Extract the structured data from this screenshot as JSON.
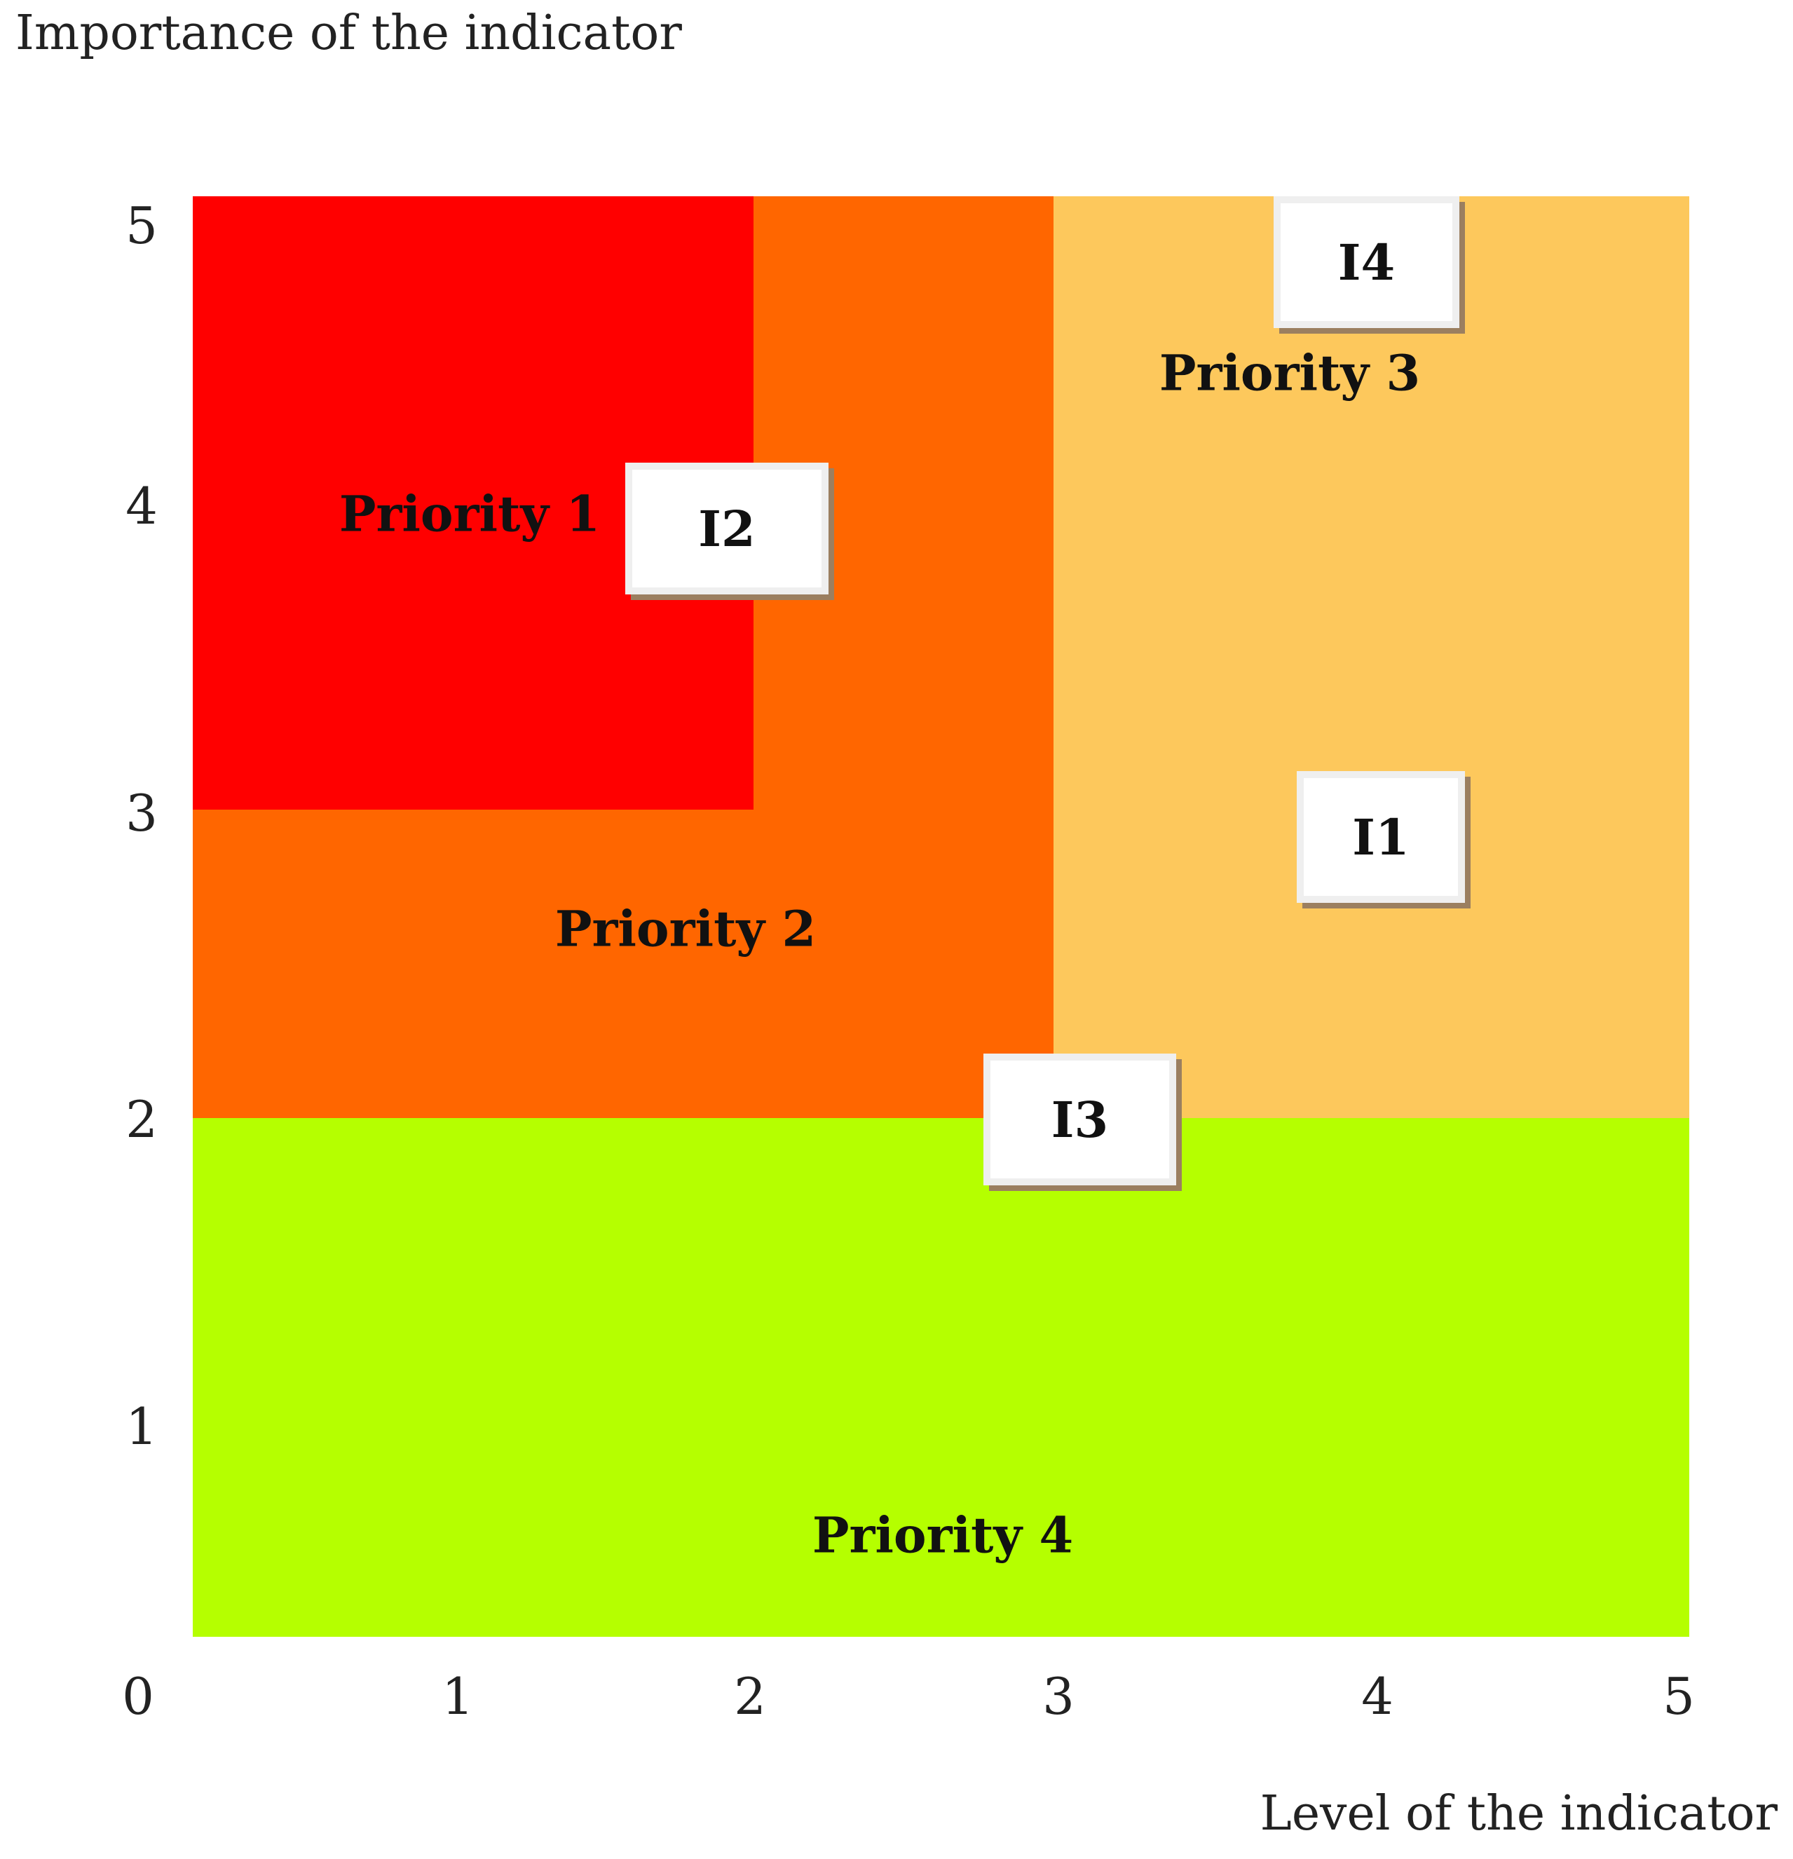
{
  "axes": {
    "y_title": "Importance of the indicator",
    "x_title": "Level of the indicator",
    "y_ticks": [
      "5",
      "4",
      "3",
      "2",
      "1"
    ],
    "x_ticks": [
      "0",
      "1",
      "2",
      "3",
      "4",
      "5"
    ]
  },
  "zones": [
    {
      "label": "Priority 1",
      "color": "#ff0000"
    },
    {
      "label": "Priority 2",
      "color": "#ff6600"
    },
    {
      "label": "Priority 3",
      "color": "#fdc85c"
    },
    {
      "label": "Priority 4",
      "color": "#b5ff00"
    }
  ],
  "indicators": [
    {
      "label": "I1"
    },
    {
      "label": "I2"
    },
    {
      "label": "I3"
    },
    {
      "label": "I4"
    }
  ]
}
